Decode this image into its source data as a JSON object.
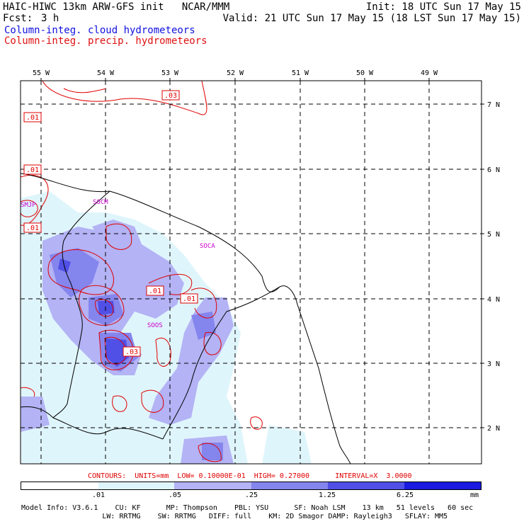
{
  "header": {
    "title": "HAIC-HIWC 13km ARW-GFS init   NCAR/MMM",
    "init": "Init: 18 UTC Sun 17 May 15",
    "fcst_label": "Fcst:",
    "fcst_value": "3 h",
    "valid": "Valid: 21 UTC Sun 17 May 15 (18 LST Sun 17 May 15)",
    "field1": "Column-integ. cloud hydrometeors",
    "field2": "Column-integ. precip. hydrometeors",
    "field1_color": "#1010e0",
    "field2_color": "#e01010"
  },
  "map": {
    "lon_labels": [
      "55 W",
      "54 W",
      "53 W",
      "52 W",
      "51 W",
      "50 W",
      "49 W"
    ],
    "lat_labels": [
      "7 N",
      "6 N",
      "5 N",
      "4 N",
      "3 N",
      "2 N"
    ],
    "stations": [
      "SMJP",
      "SOCM",
      "SOCA",
      "SOOS"
    ],
    "station_color": "#cc00cc",
    "contour_labels": [
      ".03",
      ".01",
      ".01",
      ".01",
      ".01",
      ".01",
      ".03"
    ],
    "contour_color": "#e00000"
  },
  "contours_info": "CONTOURS:  UNITS=mm  LOW= 0.10000E-01  HIGH= 0.27000      INTERVAL=X  3.0000",
  "colorbar": {
    "ticks": [
      ".01",
      ".05",
      ".25",
      "1.25",
      "6.25"
    ],
    "units": "mm",
    "colors": [
      "#ffffff",
      "#dff5fc",
      "#b3b3f5",
      "#8585ee",
      "#5050e6",
      "#1a1ae0"
    ]
  },
  "model_info": {
    "line1": "Model Info: V3.6.1    CU: KF      MP: Thompson    PBL: YSU      SF: Noah LSM    13 km   51 levels   60 sec",
    "line2": "                   LW: RRTMG    SW: RRTMG   DIFF: full    KM: 2D Smagor DAMP: Rayleigh3   SFLAY: MM5"
  }
}
